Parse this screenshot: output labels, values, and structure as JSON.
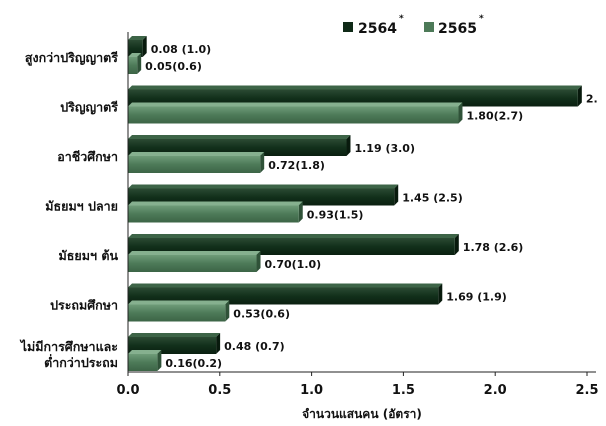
{
  "chart_data": {
    "type": "bar",
    "orientation": "horizontal",
    "style": "3d-grouped",
    "categories": [
      "สูงกว่าปริญญาตรี",
      "ปริญญาตรี",
      "อาชีวศึกษา",
      "มัธยมฯ ปลาย",
      "มัธยมฯ ต้น",
      "ประถมศึกษา",
      "ไม่มีการศึกษาและ\nต่ำกว่าประถม"
    ],
    "series": [
      {
        "name": "2564",
        "legend_mark": "*",
        "color": "#0f2a17",
        "values": [
          0.08,
          2.45,
          1.19,
          1.45,
          1.78,
          1.69,
          0.48
        ],
        "labels": [
          "0.08 (1.0)",
          "2.",
          "1.19 (3.0)",
          "1.45 (2.5)",
          "1.78 (2.6)",
          "1.69 (1.9)",
          "0.48 (0.7)"
        ]
      },
      {
        "name": "2565",
        "legend_mark": "*",
        "color": "#4d7a58",
        "values": [
          0.05,
          1.8,
          0.72,
          0.93,
          0.7,
          0.53,
          0.16
        ],
        "labels": [
          "0.05(0.6)",
          "1.80(2.7)",
          "0.72(1.8)",
          "0.93(1.5)",
          "0.70(1.0)",
          "0.53(0.6)",
          "0.16(0.2)"
        ]
      }
    ],
    "xlim": [
      0,
      2.5
    ],
    "xticks": [
      "0.0",
      "0.5",
      "1.0",
      "1.5",
      "2.0",
      "2.5"
    ],
    "xticks_values": [
      0,
      0.5,
      1.0,
      1.5,
      2.0,
      2.5
    ],
    "xlabel": "จำนวนแสนคน (อัตรา)",
    "ylabel": "",
    "title": "",
    "grid": false,
    "legend_position": "top-right"
  }
}
